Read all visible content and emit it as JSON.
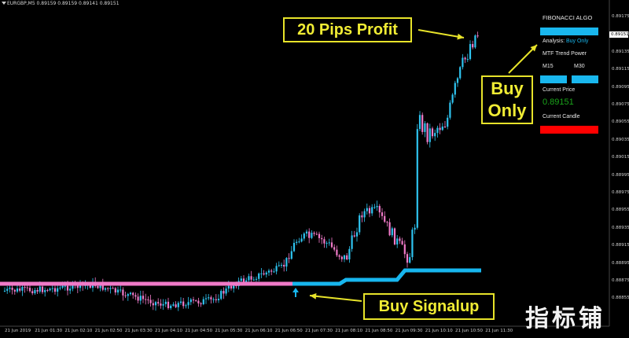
{
  "symbol": {
    "text": "EURGBP,M5  0.89159 0.89159 0.89141 0.89151"
  },
  "colors": {
    "bull": "#2ec4f0",
    "bear": "#f07ac8",
    "signal_line_early": "#f07ac8",
    "signal_line_late": "#17b6ee",
    "arrow": "#e7e32a",
    "panel_blue": "#19b7ee",
    "panel_red": "#ff0000",
    "price_green": "#1aa51a"
  },
  "price_axis": [
    "0.89175",
    "0.89151",
    "0.89135",
    "0.89115",
    "0.89095",
    "0.89075",
    "0.89055",
    "0.89035",
    "0.89015",
    "0.88995",
    "0.88975",
    "0.88955",
    "0.88935",
    "0.88915",
    "0.88895",
    "0.88875",
    "0.88855"
  ],
  "current_price_tag": "0.89151",
  "time_axis": [
    "21 Jun 2019",
    "21 Jun 01:30",
    "21 Jun 02:10",
    "21 Jun 02:50",
    "21 Jun 03:30",
    "21 Jun 04:10",
    "21 Jun 04:50",
    "21 Jun 05:30",
    "21 Jun 06:10",
    "21 Jun 06:50",
    "21 Jun 07:30",
    "21 Jun 08:10",
    "21 Jun 08:50",
    "21 Jun 09:30",
    "21 Jun 10:10",
    "21 Jun 10:50",
    "21 Jun 11:30"
  ],
  "panel": {
    "title": "FIBONACCI ALGO",
    "analysis_label": "Analysis:",
    "analysis_value": "Buy Only",
    "mtf_label": "MTF Trend Power",
    "tf1": "M15",
    "tf2": "M30",
    "current_price_label": "Current Price",
    "current_price_value": "0.89151",
    "current_candle_label": "Current Candle"
  },
  "callouts": {
    "profit": "20 Pips Profit",
    "buy_only_line1": "Buy",
    "buy_only_line2": "Only",
    "signal": "Buy Signalup"
  },
  "watermark": "指标铺"
}
